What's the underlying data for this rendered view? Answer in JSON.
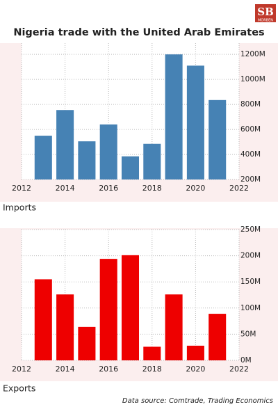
{
  "title": "Nigeria trade with the United Arab Emirates",
  "logo": {
    "mark": "SB",
    "name": "MORBEN"
  },
  "source": "Data source: Comtrade, Trading Economics",
  "chart_data": [
    {
      "type": "bar",
      "label": "Imports",
      "color": "#4682b4",
      "x": [
        2013,
        2014,
        2015,
        2016,
        2017,
        2018,
        2019,
        2020,
        2021
      ],
      "values": [
        550,
        755,
        505,
        640,
        385,
        485,
        1200,
        1110,
        835
      ],
      "xlim": [
        2012,
        2022
      ],
      "xticks": [
        2012,
        2014,
        2016,
        2018,
        2020,
        2022
      ],
      "ylim": [
        200,
        1290
      ],
      "yticks": [
        {
          "value": 200,
          "label": "200M"
        },
        {
          "value": 400,
          "label": "400M"
        },
        {
          "value": 600,
          "label": "600M"
        },
        {
          "value": 800,
          "label": "800M"
        },
        {
          "value": 1000,
          "label": "1000M"
        },
        {
          "value": 1200,
          "label": "1200M"
        }
      ],
      "grid": true
    },
    {
      "type": "bar",
      "label": "Exports",
      "color": "#ee0000",
      "x": [
        2013,
        2014,
        2015,
        2016,
        2017,
        2018,
        2019,
        2020,
        2021
      ],
      "values": [
        155,
        126,
        64,
        194,
        201,
        26,
        126,
        28,
        89
      ],
      "xlim": [
        2012,
        2022
      ],
      "xticks": [
        2012,
        2014,
        2016,
        2018,
        2020,
        2022
      ],
      "ylim": [
        0,
        250
      ],
      "yticks": [
        {
          "value": 0,
          "label": "0M"
        },
        {
          "value": 50,
          "label": "50M"
        },
        {
          "value": 100,
          "label": "100M"
        },
        {
          "value": 150,
          "label": "150M"
        },
        {
          "value": 200,
          "label": "200M"
        },
        {
          "value": 250,
          "label": "250M"
        }
      ],
      "grid": true
    }
  ]
}
